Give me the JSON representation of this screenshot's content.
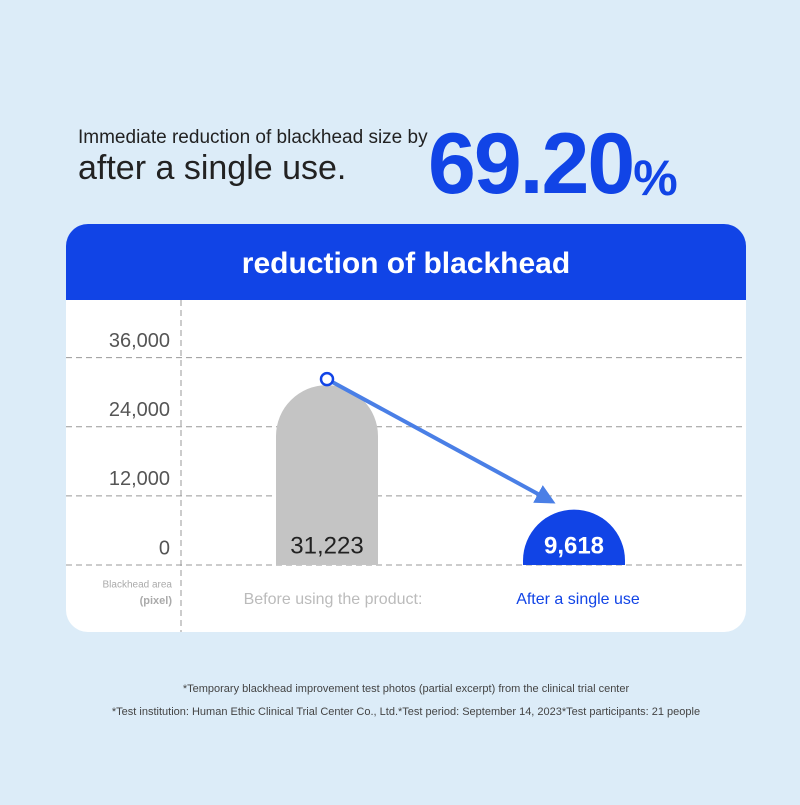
{
  "header": {
    "line1": "Immediate reduction of blackhead size by",
    "line2": "after a single use.",
    "figure": "69.20",
    "figure_unit": "%"
  },
  "chart_data": {
    "type": "bar",
    "title": "reduction of blackhead",
    "categories": [
      "Before using the product:",
      "After a single use"
    ],
    "values": [
      31223,
      9618
    ],
    "value_labels": [
      "31,223",
      "9,618"
    ],
    "colors": [
      "#c4c4c4",
      "#1144e6"
    ],
    "ylabel": "Blackhead area",
    "yunit": "(pixel)",
    "ylim": [
      0,
      46000
    ],
    "yticks": [
      0,
      {
        "value": 12000,
        "label": "12,000"
      },
      {
        "value": 24000,
        "label": "24,000"
      },
      {
        "value": 36000,
        "label": "36,000"
      }
    ],
    "grid": true
  },
  "footnotes": [
    "*Temporary blackhead improvement test photos (partial excerpt) from the clinical trial center",
    "*Test institution: Human Ethic Clinical Trial Center Co., Ltd.*Test period: September 14, 2023*Test participants: 21 people"
  ]
}
